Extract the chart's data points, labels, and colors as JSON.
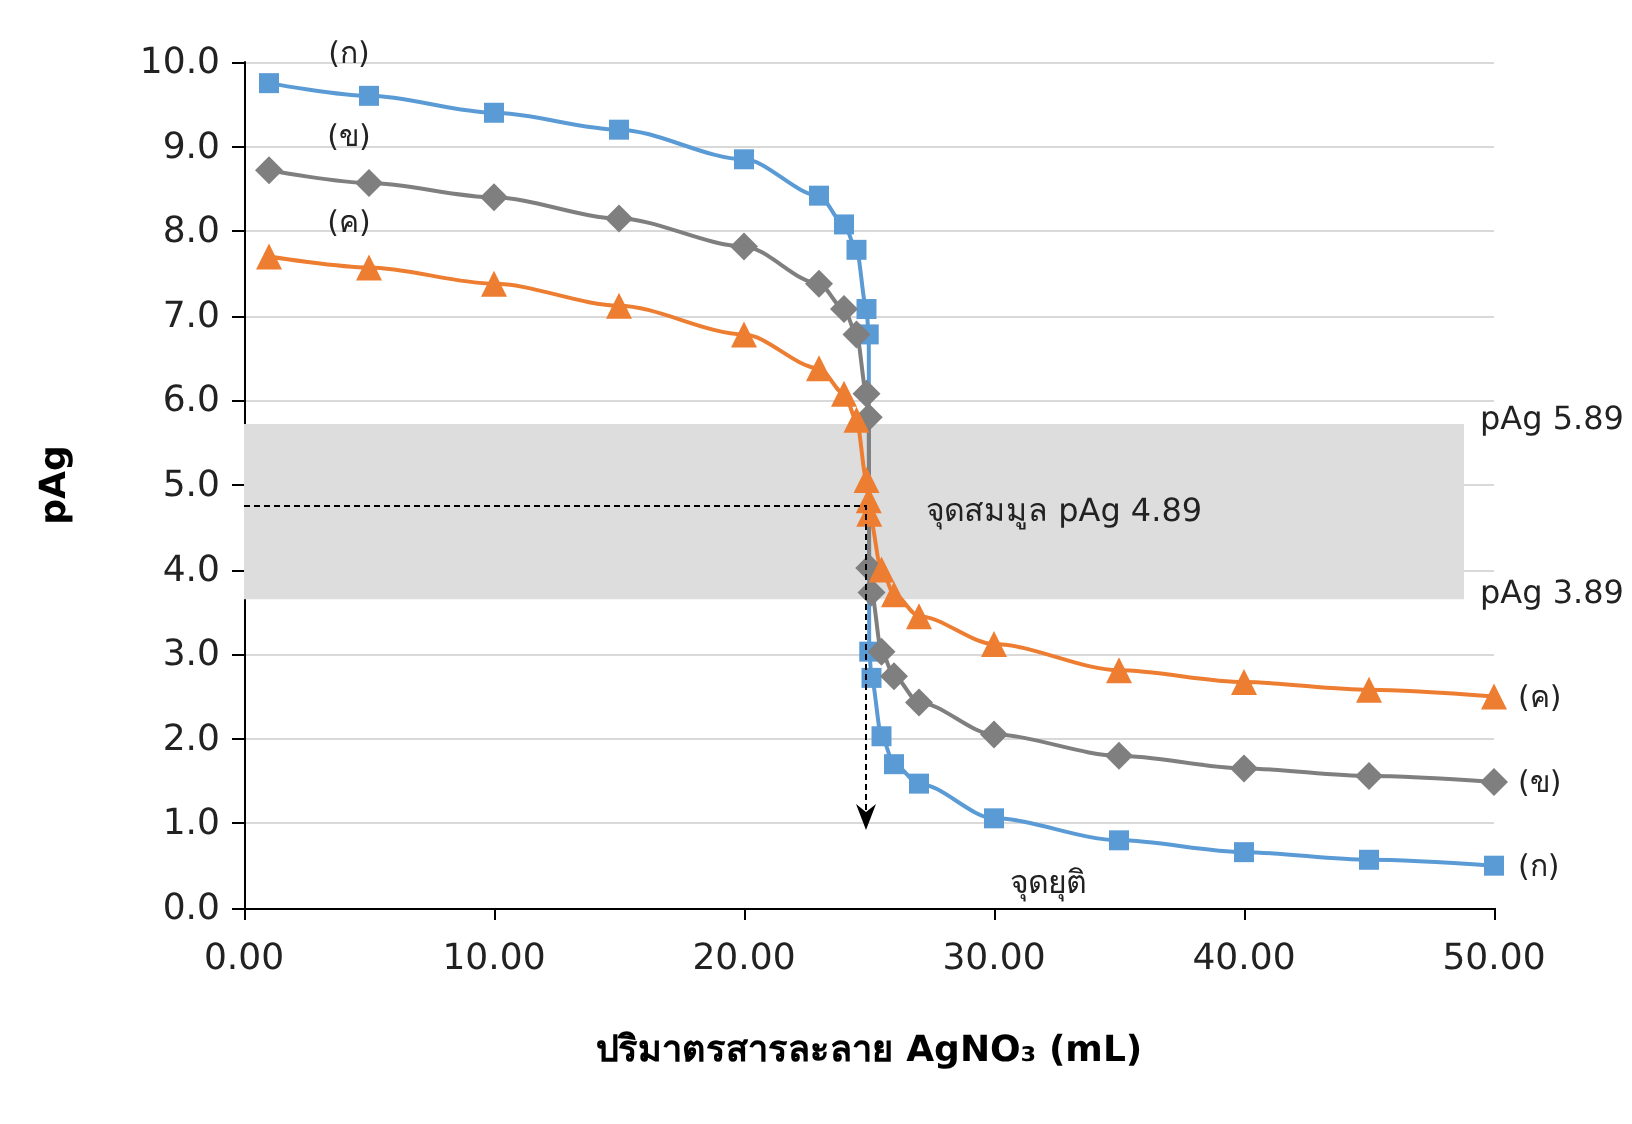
{
  "chart_data": {
    "type": "line",
    "xlabel": "ปริมาตรสารละลาย AgNO₃ (mL)",
    "ylabel": "pAg",
    "xlim": [
      0,
      50
    ],
    "xticks": [
      {
        "value": 0,
        "label": "0.00"
      },
      {
        "value": 10,
        "label": "10.00"
      },
      {
        "value": 20,
        "label": "20.00"
      },
      {
        "value": 30,
        "label": "30.00"
      },
      {
        "value": 40,
        "label": "40.00"
      },
      {
        "value": 50,
        "label": "50.00"
      }
    ],
    "ylim": [
      0,
      10
    ],
    "yticks": [
      {
        "value": 0,
        "label": "0.0"
      },
      {
        "value": 1,
        "label": "1.0"
      },
      {
        "value": 2,
        "label": "2.0"
      },
      {
        "value": 3,
        "label": "3.0"
      },
      {
        "value": 4,
        "label": "4.0"
      },
      {
        "value": 5,
        "label": "5.0"
      },
      {
        "value": 6,
        "label": "6.0"
      },
      {
        "value": 7,
        "label": "7.0"
      },
      {
        "value": 8,
        "label": "8.0"
      },
      {
        "value": 9,
        "label": "9.0"
      },
      {
        "value": 10,
        "label": "10.0"
      }
    ],
    "grid": "y",
    "legend": false,
    "x": [
      1,
      5,
      10,
      15,
      20,
      23,
      24,
      24.5,
      24.9,
      24.99,
      25.01,
      25.1,
      25.5,
      26,
      27,
      30,
      35,
      40,
      45,
      50
    ],
    "series": [
      {
        "name": "(ก)",
        "color": "#5b9bd5",
        "marker": "square",
        "values": [
          9.75,
          9.6,
          9.4,
          9.2,
          8.85,
          8.42,
          8.08,
          7.78,
          7.08,
          6.78,
          3.03,
          2.72,
          2.03,
          1.7,
          1.47,
          1.06,
          0.8,
          0.66,
          0.57,
          0.5
        ]
      },
      {
        "name": "(ข)",
        "color": "#7f7f7f",
        "marker": "diamond",
        "values": [
          8.72,
          8.57,
          8.4,
          8.15,
          7.82,
          7.38,
          7.08,
          6.78,
          6.08,
          5.8,
          4.02,
          3.73,
          3.03,
          2.74,
          2.43,
          2.05,
          1.8,
          1.65,
          1.56,
          1.49
        ]
      },
      {
        "name": "(ค)",
        "color": "#ed7d31",
        "marker": "triangle",
        "x": [
          1,
          5,
          10,
          15,
          20,
          23,
          24,
          24.5,
          24.9,
          24.99,
          25.01,
          25.5,
          26,
          27,
          30,
          35,
          40,
          45,
          50
        ],
        "values": [
          7.7,
          7.57,
          7.38,
          7.12,
          6.78,
          6.38,
          6.08,
          5.77,
          5.06,
          4.82,
          4.66,
          4.0,
          3.71,
          3.45,
          3.12,
          2.81,
          2.67,
          2.58,
          2.5
        ]
      }
    ],
    "bands": [
      {
        "axis": "y",
        "from": 3.65,
        "to": 5.72,
        "color": "#dddddd"
      }
    ],
    "annotations": [
      "จุดสมมูล pAg 4.89",
      "pAg 5.89",
      "pAg 3.89",
      "จุดยุติ"
    ]
  }
}
